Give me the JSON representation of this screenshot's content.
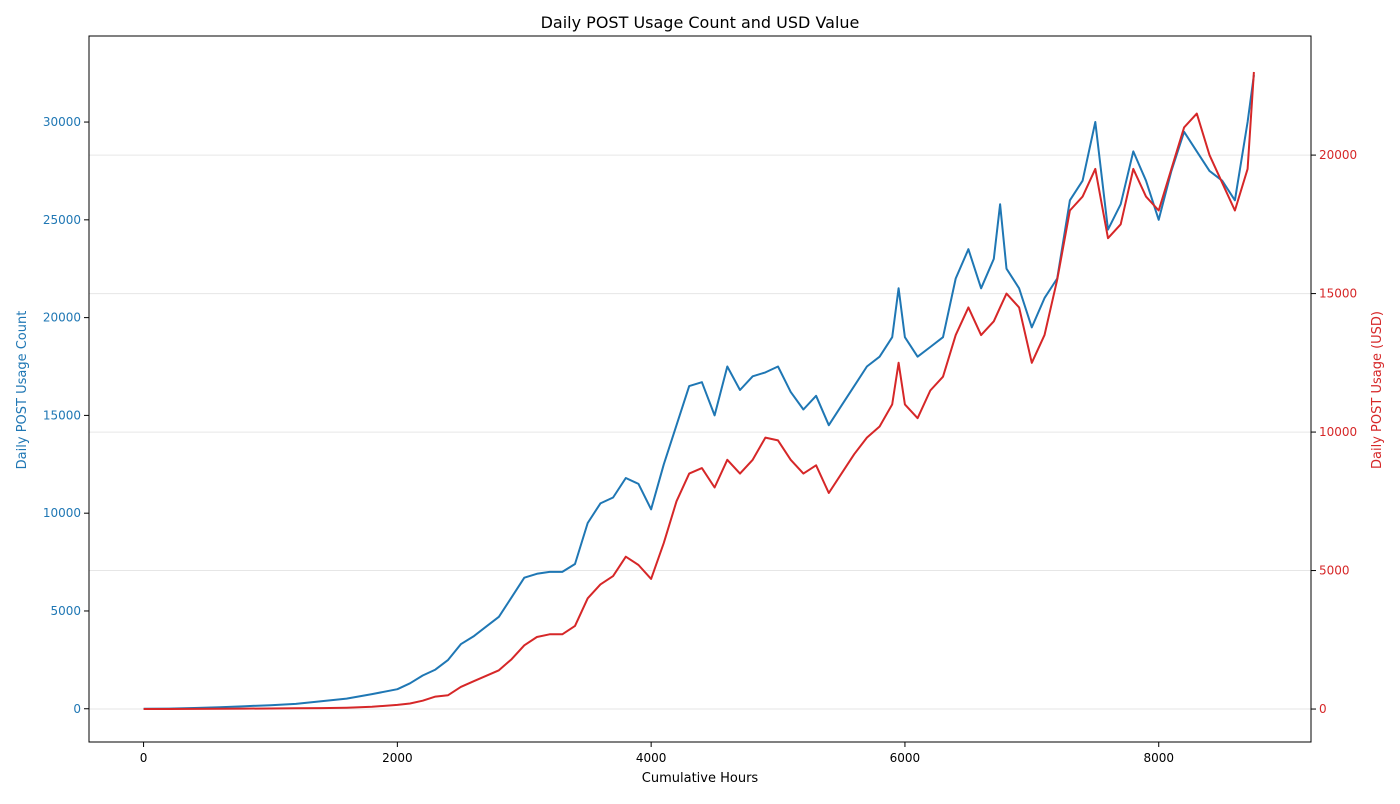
{
  "chart_data": {
    "type": "line",
    "title": "Daily POST Usage Count and USD Value",
    "xlabel": "Cumulative Hours",
    "ylabel_left": "Daily POST Usage Count",
    "ylabel_right": "Daily POST Usage (USD)",
    "xlim": [
      -430,
      9200
    ],
    "ylim_left": [
      -1700,
      34400
    ],
    "ylim_right": [
      -1190,
      24300
    ],
    "x_ticks": [
      0,
      2000,
      4000,
      6000,
      8000
    ],
    "y_left_ticks": [
      0,
      5000,
      10000,
      15000,
      20000,
      25000,
      30000
    ],
    "y_right_ticks": [
      0,
      5000,
      10000,
      15000,
      20000
    ],
    "grid": "horizontal, right axis",
    "legend": "none",
    "colors": {
      "count": "#1f77b4",
      "usd": "#d62728",
      "grid": "#e6e6e6",
      "axis": "#000000"
    },
    "series": [
      {
        "axis": "left",
        "color": "#1f77b4",
        "x": [
          0,
          200,
          400,
          600,
          800,
          1000,
          1200,
          1400,
          1600,
          1800,
          2000,
          2100,
          2200,
          2300,
          2400,
          2500,
          2600,
          2700,
          2800,
          2900,
          3000,
          3100,
          3200,
          3300,
          3400,
          3500,
          3600,
          3700,
          3800,
          3900,
          4000,
          4100,
          4200,
          4300,
          4400,
          4500,
          4600,
          4700,
          4800,
          4900,
          5000,
          5100,
          5200,
          5300,
          5400,
          5500,
          5600,
          5700,
          5800,
          5900,
          5950,
          6000,
          6100,
          6200,
          6300,
          6400,
          6500,
          6600,
          6700,
          6750,
          6800,
          6900,
          7000,
          7100,
          7200,
          7300,
          7400,
          7500,
          7600,
          7700,
          7800,
          7900,
          8000,
          8100,
          8200,
          8300,
          8400,
          8500,
          8600,
          8700,
          8750
        ],
        "values": [
          0,
          10,
          40,
          80,
          130,
          180,
          250,
          380,
          520,
          750,
          1000,
          1300,
          1700,
          2000,
          2500,
          3300,
          3700,
          4200,
          4700,
          5700,
          6700,
          6900,
          7000,
          7000,
          7400,
          9500,
          10500,
          10800,
          11800,
          11500,
          10200,
          12500,
          14500,
          16500,
          16700,
          15000,
          17500,
          16300,
          17000,
          17200,
          17500,
          16200,
          15300,
          16000,
          14500,
          15500,
          16500,
          17500,
          18000,
          19000,
          21500,
          19000,
          18000,
          18500,
          19000,
          22000,
          23500,
          21500,
          23000,
          25800,
          22500,
          21500,
          19500,
          21000,
          22000,
          26000,
          27000,
          30000,
          24500,
          25800,
          28500,
          27000,
          25000,
          27500,
          29500,
          28500,
          27500,
          27000,
          26000,
          30000,
          32400
        ]
      },
      {
        "axis": "right",
        "color": "#d62728",
        "x": [
          0,
          200,
          400,
          600,
          800,
          1000,
          1200,
          1400,
          1600,
          1800,
          2000,
          2100,
          2200,
          2300,
          2400,
          2500,
          2600,
          2700,
          2800,
          2900,
          3000,
          3100,
          3200,
          3300,
          3400,
          3500,
          3600,
          3700,
          3800,
          3900,
          4000,
          4100,
          4200,
          4300,
          4400,
          4500,
          4600,
          4700,
          4800,
          4900,
          5000,
          5100,
          5200,
          5300,
          5400,
          5500,
          5600,
          5700,
          5800,
          5900,
          5950,
          6000,
          6100,
          6200,
          6300,
          6400,
          6500,
          6600,
          6700,
          6750,
          6800,
          6900,
          7000,
          7100,
          7200,
          7300,
          7400,
          7500,
          7600,
          7700,
          7800,
          7900,
          8000,
          8100,
          8200,
          8300,
          8400,
          8500,
          8600,
          8700,
          8750
        ],
        "values": [
          0,
          0,
          5,
          10,
          15,
          20,
          25,
          35,
          50,
          80,
          150,
          200,
          300,
          450,
          500,
          800,
          1000,
          1200,
          1400,
          1800,
          2300,
          2600,
          2700,
          2700,
          3000,
          4000,
          4500,
          4800,
          5500,
          5200,
          4700,
          6000,
          7500,
          8500,
          8700,
          8000,
          9000,
          8500,
          9000,
          9800,
          9700,
          9000,
          8500,
          8800,
          7800,
          8500,
          9200,
          9800,
          10200,
          11000,
          12500,
          11000,
          10500,
          11500,
          12000,
          13500,
          14500,
          13500,
          14000,
          14500,
          15000,
          14500,
          12500,
          13500,
          15500,
          18000,
          18500,
          19500,
          17000,
          17500,
          19500,
          18500,
          18000,
          19500,
          21000,
          21500,
          20000,
          19000,
          18000,
          19500,
          23000
        ]
      }
    ]
  }
}
